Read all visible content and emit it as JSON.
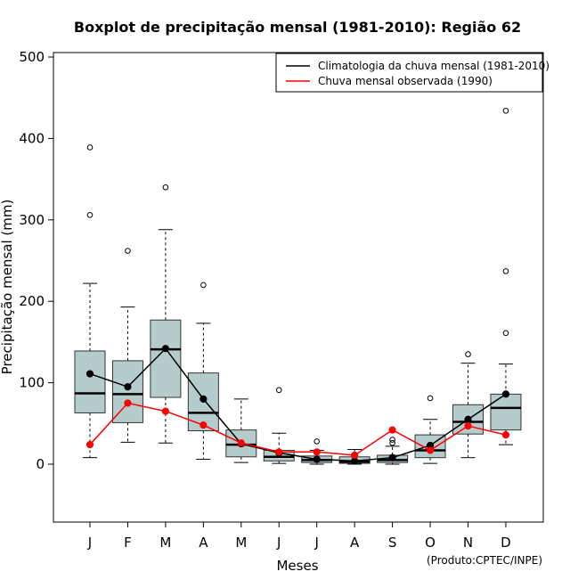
{
  "chart_data": {
    "type": "boxplot",
    "title": "Boxplot de precipitação mensal (1981-2010): Região 62",
    "xlabel": "Meses",
    "ylabel": "Precipitação mensal (mm)",
    "ylim": [
      -70,
      510
    ],
    "yticks": [
      0,
      100,
      200,
      300,
      400,
      500
    ],
    "categories": [
      "J",
      "F",
      "M",
      "A",
      "M",
      "J",
      "J",
      "A",
      "S",
      "O",
      "N",
      "D"
    ],
    "boxes": [
      {
        "month": "J",
        "whisker_low": 8,
        "q1": 63,
        "median": 87,
        "q3": 139,
        "whisker_high": 222,
        "outliers": [
          306,
          389
        ]
      },
      {
        "month": "F",
        "whisker_low": 27,
        "q1": 51,
        "median": 86,
        "q3": 127,
        "whisker_high": 193,
        "outliers": [
          262
        ]
      },
      {
        "month": "M",
        "whisker_low": 26,
        "q1": 82,
        "median": 141,
        "q3": 177,
        "whisker_high": 288,
        "outliers": [
          340
        ]
      },
      {
        "month": "A",
        "whisker_low": 6,
        "q1": 41,
        "median": 63,
        "q3": 112,
        "whisker_high": 173,
        "outliers": [
          220
        ]
      },
      {
        "month": "M",
        "whisker_low": 2,
        "q1": 9,
        "median": 24,
        "q3": 42,
        "whisker_high": 80,
        "outliers": []
      },
      {
        "month": "J",
        "whisker_low": 1,
        "q1": 4,
        "median": 9,
        "q3": 17,
        "whisker_high": 38,
        "outliers": [
          91
        ]
      },
      {
        "month": "J",
        "whisker_low": 0,
        "q1": 2,
        "median": 5,
        "q3": 10,
        "whisker_high": 17,
        "outliers": [
          28
        ]
      },
      {
        "month": "A",
        "whisker_low": 0,
        "q1": 1,
        "median": 3,
        "q3": 9,
        "whisker_high": 18,
        "outliers": []
      },
      {
        "month": "S",
        "whisker_low": 0,
        "q1": 2,
        "median": 5,
        "q3": 11,
        "whisker_high": 22,
        "outliers": [
          26,
          30
        ]
      },
      {
        "month": "O",
        "whisker_low": 1,
        "q1": 8,
        "median": 17,
        "q3": 36,
        "whisker_high": 55,
        "outliers": [
          81
        ]
      },
      {
        "month": "N",
        "whisker_low": 8,
        "q1": 37,
        "median": 52,
        "q3": 73,
        "whisker_high": 124,
        "outliers": [
          135
        ]
      },
      {
        "month": "D",
        "whisker_low": 24,
        "q1": 42,
        "median": 69,
        "q3": 86,
        "whisker_high": 123,
        "outliers": [
          161,
          237,
          434
        ]
      }
    ],
    "series": [
      {
        "name": "Climatologia da chuva mensal (1981-2010)",
        "color": "#000000",
        "values": [
          111,
          95,
          142,
          80,
          25,
          14,
          6,
          4,
          8,
          23,
          55,
          86
        ]
      },
      {
        "name": "Chuva mensal observada (1990)",
        "color": "#ff0000",
        "values": [
          24,
          75,
          65,
          48,
          26,
          15,
          15,
          11,
          42,
          17,
          47,
          36
        ]
      }
    ],
    "box_fill": "#b5cccc",
    "legend_position": "top-right",
    "credit": "(Produto:CPTEC/INPE)"
  }
}
